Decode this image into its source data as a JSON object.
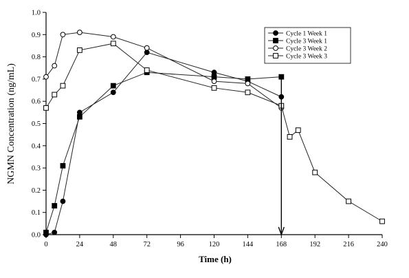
{
  "chart_data": {
    "type": "line",
    "title": "",
    "xlabel": "Time (h)",
    "ylabel": "NGMN Concentration (ng/mL)",
    "xlim": [
      0,
      240
    ],
    "ylim": [
      0,
      1.0
    ],
    "xticks": [
      0,
      24,
      48,
      72,
      96,
      120,
      144,
      168,
      192,
      216,
      240
    ],
    "yticks": [
      0.0,
      0.1,
      0.2,
      0.3,
      0.4,
      0.5,
      0.6,
      0.7,
      0.8,
      0.9,
      1.0
    ],
    "ytick_labels": [
      "0.0",
      "0.1",
      "0.2",
      "0.3",
      "0.4",
      "0.5",
      "0.6",
      "0.7",
      "0.8",
      "0.9",
      "1.0"
    ],
    "grid": false,
    "legend_position": "top-right",
    "series": [
      {
        "name": "Cycle 1 Week 1",
        "marker": "filled-circle",
        "x": [
          0,
          6,
          12,
          24,
          48,
          72,
          120,
          144,
          168
        ],
        "y": [
          0.0,
          0.01,
          0.15,
          0.55,
          0.64,
          0.82,
          0.73,
          0.69,
          0.62
        ]
      },
      {
        "name": "Cycle 3 Week 1",
        "marker": "filled-square",
        "x": [
          0,
          6,
          12,
          24,
          48,
          72,
          120,
          144,
          168
        ],
        "y": [
          0.01,
          0.13,
          0.31,
          0.53,
          0.67,
          0.73,
          0.71,
          0.7,
          0.71
        ]
      },
      {
        "name": "Cycle 3 Week 2",
        "marker": "open-circle",
        "x": [
          0,
          6,
          12,
          24,
          48,
          72,
          120,
          144,
          168
        ],
        "y": [
          0.71,
          0.76,
          0.9,
          0.91,
          0.89,
          0.84,
          0.69,
          0.68,
          0.57
        ]
      },
      {
        "name": "Cycle 3 Week 3",
        "marker": "open-square",
        "x": [
          0,
          6,
          12,
          24,
          48,
          72,
          120,
          144,
          168,
          174,
          180,
          192,
          216,
          240
        ],
        "y": [
          0.57,
          0.63,
          0.67,
          0.83,
          0.86,
          0.74,
          0.66,
          0.64,
          0.58,
          0.44,
          0.47,
          0.28,
          0.15,
          0.06
        ]
      }
    ],
    "annotation": {
      "type": "downward-arrow",
      "x": 168,
      "y_from": 0.71,
      "y_to": 0.0
    }
  }
}
